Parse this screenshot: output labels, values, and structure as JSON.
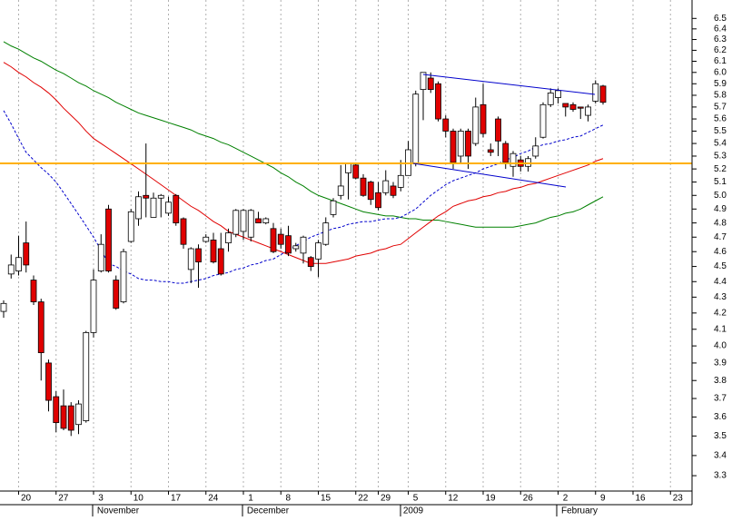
{
  "chart_data": {
    "type": "candlestick",
    "categories": [
      null,
      null,
      "20",
      null,
      null,
      null,
      null,
      "27",
      null,
      null,
      null,
      null,
      "3",
      null,
      null,
      null,
      null,
      "10",
      null,
      null,
      null,
      null,
      "17",
      null,
      null,
      null,
      null,
      "24",
      null,
      null,
      null,
      null,
      "1",
      null,
      null,
      null,
      null,
      "8",
      null,
      null,
      null,
      null,
      "15",
      null,
      null,
      null,
      null,
      "22",
      null,
      null,
      "29",
      null,
      null,
      null,
      "5",
      null,
      null,
      null,
      null,
      "12",
      null,
      null,
      null,
      null,
      "19",
      null,
      null,
      null,
      null,
      "26",
      null,
      null,
      null,
      null,
      "2",
      null,
      null,
      null,
      null,
      "9",
      null,
      null,
      null,
      null,
      "16",
      null,
      null,
      null,
      null,
      "23",
      null,
      null
    ],
    "open": [
      4.21,
      4.45,
      4.47,
      4.66,
      4.41,
      4.27,
      3.9,
      3.71,
      3.66,
      3.66,
      3.56,
      3.58,
      4.08,
      4.47,
      4.9,
      4.41,
      4.27,
      4.67,
      4.83,
      5.0,
      4.84,
      4.98,
      4.87,
      5.0,
      4.83,
      4.48,
      4.62,
      4.67,
      4.68,
      4.62,
      4.66,
      4.72,
      4.74,
      4.7,
      4.83,
      4.8,
      4.76,
      4.72,
      4.71,
      4.62,
      4.59,
      4.56,
      4.55,
      4.65,
      4.86,
      5.0,
      5.17,
      5.23,
      5.13,
      5.1,
      5.02,
      5.02,
      5.07,
      5.06,
      5.15,
      5.24,
      5.85,
      5.95,
      5.9,
      5.6,
      5.5,
      5.3,
      5.5,
      5.4,
      5.72,
      5.35,
      5.6,
      5.4,
      5.22,
      5.27,
      5.22,
      5.3,
      5.45,
      5.72,
      5.78,
      5.73,
      5.72,
      5.7,
      5.63,
      5.75,
      5.88,
      null,
      null,
      null,
      null,
      null,
      null,
      null,
      null,
      null,
      null,
      null
    ],
    "high": [
      4.28,
      4.58,
      4.71,
      4.81,
      4.44,
      4.29,
      3.92,
      3.74,
      3.75,
      3.68,
      3.69,
      4.09,
      4.48,
      4.72,
      4.93,
      4.44,
      4.62,
      4.9,
      5.03,
      5.4,
      5.02,
      5.01,
      4.99,
      5.01,
      4.84,
      4.63,
      4.65,
      4.72,
      4.73,
      4.73,
      4.76,
      4.9,
      4.9,
      4.9,
      4.88,
      4.84,
      4.8,
      4.76,
      4.78,
      4.66,
      4.71,
      4.57,
      4.68,
      4.84,
      4.98,
      5.23,
      5.24,
      5.25,
      5.16,
      5.11,
      5.1,
      5.19,
      5.1,
      5.27,
      5.42,
      5.84,
      6.0,
      6.0,
      5.92,
      5.63,
      5.52,
      5.52,
      5.52,
      5.78,
      5.9,
      5.4,
      5.62,
      5.42,
      5.34,
      5.3,
      5.3,
      5.45,
      5.74,
      5.86,
      5.86,
      5.73,
      5.74,
      5.7,
      5.72,
      5.93,
      5.89,
      null,
      null,
      null,
      null,
      null,
      null,
      null,
      null,
      null,
      null,
      null
    ],
    "low": [
      4.17,
      4.42,
      4.44,
      4.46,
      4.25,
      3.8,
      3.63,
      3.52,
      3.53,
      3.5,
      3.51,
      3.57,
      4.05,
      4.46,
      4.46,
      4.22,
      4.26,
      4.66,
      4.78,
      4.84,
      4.84,
      4.84,
      4.85,
      4.78,
      4.62,
      4.39,
      4.36,
      4.66,
      4.52,
      4.44,
      4.6,
      4.7,
      4.68,
      4.67,
      4.8,
      4.79,
      4.59,
      4.62,
      4.57,
      4.6,
      4.52,
      4.47,
      4.43,
      4.64,
      4.84,
      4.97,
      4.97,
      5.12,
      4.99,
      4.93,
      4.89,
      5.0,
      4.98,
      5.03,
      5.15,
      5.22,
      5.59,
      5.82,
      5.58,
      5.45,
      5.2,
      5.24,
      5.2,
      5.38,
      5.45,
      5.3,
      5.3,
      5.2,
      5.14,
      5.18,
      5.18,
      5.28,
      5.44,
      5.7,
      5.73,
      5.62,
      5.66,
      5.6,
      5.58,
      5.73,
      5.72,
      null,
      null,
      null,
      null,
      null,
      null,
      null,
      null,
      null,
      null,
      null
    ],
    "close": [
      4.26,
      4.51,
      4.56,
      4.51,
      4.27,
      3.96,
      3.69,
      3.57,
      3.54,
      3.53,
      3.67,
      4.08,
      4.41,
      4.65,
      4.47,
      4.23,
      4.6,
      4.88,
      4.99,
      4.98,
      4.98,
      5.0,
      4.95,
      4.8,
      4.65,
      4.62,
      4.53,
      4.7,
      4.53,
      4.45,
      4.73,
      4.89,
      4.89,
      4.89,
      4.8,
      4.83,
      4.6,
      4.65,
      4.59,
      4.64,
      4.7,
      4.5,
      4.66,
      4.8,
      4.96,
      5.07,
      5.24,
      5.13,
      5.0,
      4.97,
      4.91,
      5.11,
      5.0,
      5.15,
      5.35,
      5.81,
      6.0,
      5.85,
      5.6,
      5.5,
      5.25,
      5.5,
      5.3,
      5.7,
      5.48,
      5.33,
      5.42,
      5.25,
      5.32,
      5.22,
      5.28,
      5.38,
      5.72,
      5.82,
      5.84,
      5.7,
      5.68,
      5.69,
      5.7,
      5.9,
      5.74,
      null,
      null,
      null,
      null,
      null,
      null,
      null,
      null,
      null,
      null,
      null
    ],
    "up_color": "#ffffff",
    "down_color": "#e00000",
    "lines": [
      {
        "color": "#008000",
        "dashed": false,
        "values": [
          6.28,
          6.24,
          6.21,
          6.17,
          6.13,
          6.1,
          6.06,
          6.02,
          5.99,
          5.95,
          5.91,
          5.88,
          5.84,
          5.81,
          5.78,
          5.74,
          5.71,
          5.68,
          5.65,
          5.63,
          5.61,
          5.59,
          5.57,
          5.55,
          5.53,
          5.51,
          5.48,
          5.46,
          5.44,
          5.41,
          5.39,
          5.36,
          5.33,
          5.3,
          5.27,
          5.24,
          5.21,
          5.17,
          5.14,
          5.1,
          5.07,
          5.03,
          5.0,
          4.98,
          4.96,
          4.94,
          4.92,
          4.9,
          4.88,
          4.87,
          4.86,
          4.85,
          4.85,
          4.84,
          4.83,
          4.83,
          4.82,
          4.82,
          4.82,
          4.81,
          4.8,
          4.79,
          4.78,
          4.77,
          4.77,
          4.77,
          4.77,
          4.77,
          4.77,
          4.78,
          4.79,
          4.8,
          4.82,
          4.84,
          4.85,
          4.87,
          4.88,
          4.9,
          4.93,
          4.96,
          4.99,
          null,
          null,
          null,
          null,
          null,
          null,
          null,
          null,
          null,
          null,
          null
        ]
      },
      {
        "color": "#e00000",
        "dashed": false,
        "values": [
          6.09,
          6.05,
          6.0,
          5.96,
          5.91,
          5.87,
          5.82,
          5.76,
          5.69,
          5.63,
          5.57,
          5.5,
          5.44,
          5.4,
          5.36,
          5.32,
          5.28,
          5.24,
          5.2,
          5.16,
          5.12,
          5.08,
          5.04,
          5.0,
          4.96,
          4.92,
          4.89,
          4.85,
          4.81,
          4.78,
          4.74,
          4.72,
          4.7,
          4.68,
          4.66,
          4.64,
          4.62,
          4.6,
          4.58,
          4.56,
          4.54,
          4.52,
          4.52,
          4.52,
          4.53,
          4.54,
          4.55,
          4.57,
          4.58,
          4.59,
          4.61,
          4.62,
          4.64,
          4.65,
          4.69,
          4.73,
          4.77,
          4.81,
          4.85,
          4.88,
          4.92,
          4.94,
          4.96,
          4.97,
          4.99,
          5.0,
          5.02,
          5.03,
          5.05,
          5.06,
          5.08,
          5.09,
          5.11,
          5.13,
          5.15,
          5.17,
          5.19,
          5.21,
          5.23,
          5.26,
          5.28,
          null,
          null,
          null,
          null,
          null,
          null,
          null,
          null,
          null,
          null,
          null
        ]
      },
      {
        "color": "#0000cc",
        "dashed": true,
        "values": [
          5.67,
          5.56,
          5.44,
          5.33,
          5.27,
          5.21,
          5.16,
          5.1,
          5.02,
          4.94,
          4.86,
          4.78,
          4.7,
          4.61,
          4.52,
          4.5,
          4.47,
          4.45,
          4.42,
          4.41,
          4.41,
          4.4,
          4.4,
          4.39,
          4.39,
          4.4,
          4.41,
          4.42,
          4.44,
          4.45,
          4.46,
          4.48,
          4.49,
          4.51,
          4.52,
          4.54,
          4.55,
          4.58,
          4.61,
          4.64,
          4.67,
          4.7,
          4.72,
          4.74,
          4.76,
          4.77,
          4.79,
          4.8,
          4.81,
          4.81,
          4.82,
          4.83,
          4.83,
          4.84,
          4.87,
          4.9,
          4.95,
          5.0,
          5.04,
          5.08,
          5.11,
          5.13,
          5.15,
          5.17,
          5.2,
          5.22,
          5.24,
          5.27,
          5.29,
          5.32,
          5.34,
          5.37,
          5.39,
          5.4,
          5.42,
          5.43,
          5.45,
          5.46,
          5.49,
          5.52,
          5.55,
          null,
          null,
          null,
          null,
          null,
          null,
          null,
          null,
          null,
          null,
          null
        ]
      }
    ],
    "log_scale": true,
    "grid": true,
    "ylim": [
      3.23,
      6.68
    ],
    "yticks": [
      3.3,
      3.4,
      3.5,
      3.6,
      3.7,
      3.8,
      3.9,
      {
        "value": 4,
        "label": "4.0"
      },
      4.1,
      4.2,
      4.3,
      4.4,
      4.5,
      4.6,
      4.7,
      4.8,
      4.9,
      {
        "value": 5,
        "label": "5.0"
      },
      5.1,
      5.2,
      5.3,
      5.4,
      5.5,
      5.6,
      5.7,
      5.8,
      5.9,
      {
        "value": 6,
        "label": "6.0"
      },
      6.1,
      6.2,
      6.3,
      6.4,
      6.5
    ],
    "month_labels": [
      "November",
      "December",
      "2009",
      "February"
    ]
  }
}
